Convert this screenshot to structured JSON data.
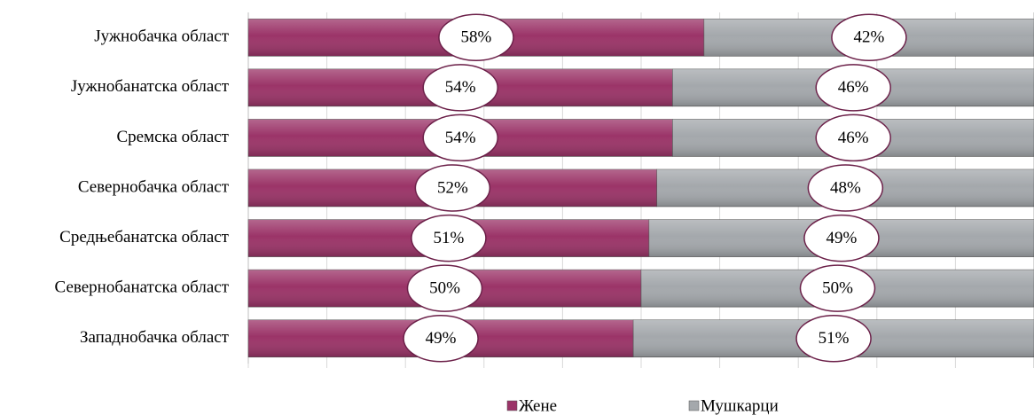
{
  "chart_data": {
    "type": "bar",
    "orientation": "horizontal",
    "stacked": true,
    "categories": [
      "Јужнобачка област",
      "Јужнобанатска област",
      "Сремска област",
      "Севернобачка област",
      "Средњебанатска област",
      "Севернобанатска област",
      "Западнобачка област"
    ],
    "series": [
      {
        "name": "Жене",
        "color": "#9b3468",
        "values": [
          58,
          54,
          54,
          52,
          51,
          50,
          49
        ],
        "value_labels": [
          "58%",
          "54%",
          "54%",
          "52%",
          "51%",
          "50%",
          "49%"
        ]
      },
      {
        "name": "Мушкарци",
        "color": "#a4a8ac",
        "values": [
          42,
          46,
          46,
          48,
          49,
          50,
          51
        ],
        "value_labels": [
          "42%",
          "46%",
          "46%",
          "48%",
          "49%",
          "50%",
          "51%"
        ]
      }
    ],
    "xlim": [
      0,
      100
    ],
    "xticks": [
      0,
      10,
      20,
      30,
      40,
      50,
      60,
      70,
      80,
      90,
      100
    ],
    "grid": true,
    "legend": "bottom"
  }
}
